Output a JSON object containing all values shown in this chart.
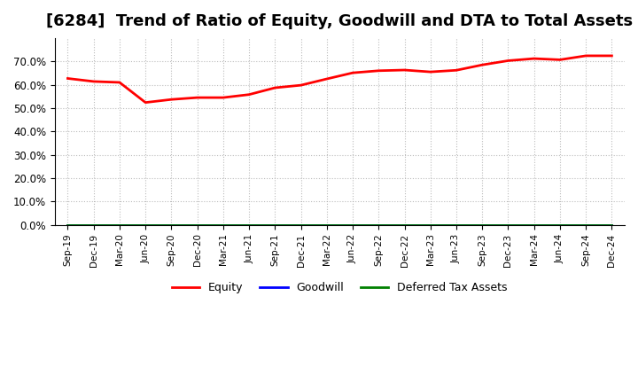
{
  "title": "[6284]  Trend of Ratio of Equity, Goodwill and DTA to Total Assets",
  "x_labels": [
    "Sep-19",
    "Dec-19",
    "Mar-20",
    "Jun-20",
    "Sep-20",
    "Dec-20",
    "Mar-21",
    "Jun-21",
    "Sep-21",
    "Dec-21",
    "Mar-22",
    "Jun-22",
    "Sep-22",
    "Dec-22",
    "Mar-23",
    "Jun-23",
    "Sep-23",
    "Dec-23",
    "Mar-24",
    "Jun-24",
    "Sep-24",
    "Dec-24"
  ],
  "equity": [
    0.627,
    0.614,
    0.61,
    0.524,
    0.537,
    0.545,
    0.545,
    0.558,
    0.587,
    0.598,
    0.625,
    0.651,
    0.66,
    0.663,
    0.655,
    0.662,
    0.685,
    0.703,
    0.712,
    0.707,
    0.724,
    0.724
  ],
  "goodwill": [
    0.0,
    0.0,
    0.0,
    0.0,
    0.0,
    0.0,
    0.0,
    0.0,
    0.0,
    0.0,
    0.0,
    0.0,
    0.0,
    0.0,
    0.0,
    0.0,
    0.0,
    0.0,
    0.0,
    0.0,
    0.0,
    0.0
  ],
  "dta": [
    0.0,
    0.0,
    0.0,
    0.0,
    0.0,
    0.0,
    0.0,
    0.0,
    0.0,
    0.0,
    0.0,
    0.0,
    0.0,
    0.0,
    0.0,
    0.0,
    0.0,
    0.0,
    0.0,
    0.0,
    0.0,
    0.0
  ],
  "equity_color": "#ff0000",
  "goodwill_color": "#0000ff",
  "dta_color": "#008000",
  "ylim": [
    0.0,
    0.8
  ],
  "yticks": [
    0.0,
    0.1,
    0.2,
    0.3,
    0.4,
    0.5,
    0.6,
    0.7
  ],
  "background_color": "#ffffff",
  "grid_color": "#aaaaaa",
  "title_fontsize": 13,
  "legend_labels": [
    "Equity",
    "Goodwill",
    "Deferred Tax Assets"
  ]
}
